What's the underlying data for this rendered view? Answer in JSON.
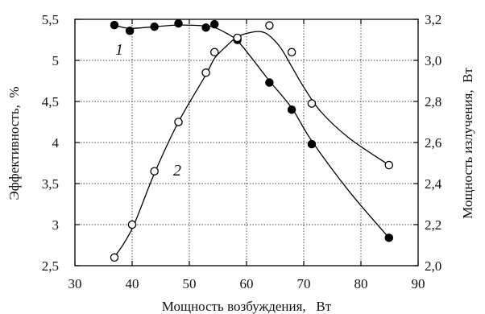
{
  "chart_data": {
    "type": "scatter",
    "xlabel": "Мощность возбуждения,   Вт",
    "ylabel": "Эффективность,  %",
    "y2label": "Мощность излучения,  Вт",
    "xlim": [
      30,
      90
    ],
    "ylim": [
      2.5,
      5.5
    ],
    "y2lim": [
      2.0,
      3.2
    ],
    "xticks": [
      "30",
      "40",
      "50",
      "60",
      "70",
      "80",
      "90"
    ],
    "yticks": [
      "2,5",
      "3",
      "3,5",
      "4",
      "4,5",
      "5",
      "5,5"
    ],
    "y2ticks": [
      "2,0",
      "2,2",
      "2,4",
      "2,6",
      "2,8",
      "3,0",
      "3,2"
    ],
    "grid": true,
    "series": [
      {
        "name": "1",
        "axis": "left",
        "marker": "filled-circle",
        "color": "#000000",
        "curve_label": "1",
        "x": [
          36.9,
          39.6,
          43.9,
          48.1,
          52.9,
          54.4,
          58.4,
          64.0,
          67.9,
          71.4,
          84.9
        ],
        "y": [
          5.43,
          5.36,
          5.41,
          5.45,
          5.4,
          5.44,
          5.25,
          4.73,
          4.4,
          3.98,
          2.84
        ]
      },
      {
        "name": "2",
        "axis": "right",
        "marker": "open-circle",
        "color": "#000000",
        "curve_label": "2",
        "x": [
          36.9,
          40.0,
          43.9,
          48.1,
          52.9,
          54.4,
          58.4,
          64.0,
          67.9,
          71.4,
          84.9
        ],
        "y": [
          2.04,
          2.2,
          2.46,
          2.7,
          2.94,
          3.04,
          3.11,
          3.17,
          3.04,
          2.79,
          2.49
        ]
      }
    ],
    "trend_lines": [
      {
        "series": "1",
        "x": [
          36.9,
          39.6,
          43.9,
          48.1,
          52.9,
          54.4,
          56.5,
          58.4,
          61,
          64.0,
          67.9,
          71.4,
          78,
          84.9
        ],
        "y": [
          5.43,
          5.39,
          5.41,
          5.43,
          5.42,
          5.4,
          5.33,
          5.24,
          5.02,
          4.75,
          4.42,
          4.02,
          3.4,
          2.84
        ]
      },
      {
        "series": "2",
        "x": [
          36.9,
          40.0,
          43.9,
          48.1,
          52.9,
          54.4,
          56.5,
          58.4,
          60.5,
          62.5,
          64.0,
          66.0,
          67.9,
          70.0,
          73.0,
          78.0,
          84.9
        ],
        "y": [
          2.04,
          2.18,
          2.45,
          2.7,
          2.93,
          3.01,
          3.07,
          3.115,
          3.135,
          3.14,
          3.12,
          3.06,
          2.97,
          2.87,
          2.75,
          2.62,
          2.49
        ]
      }
    ]
  }
}
